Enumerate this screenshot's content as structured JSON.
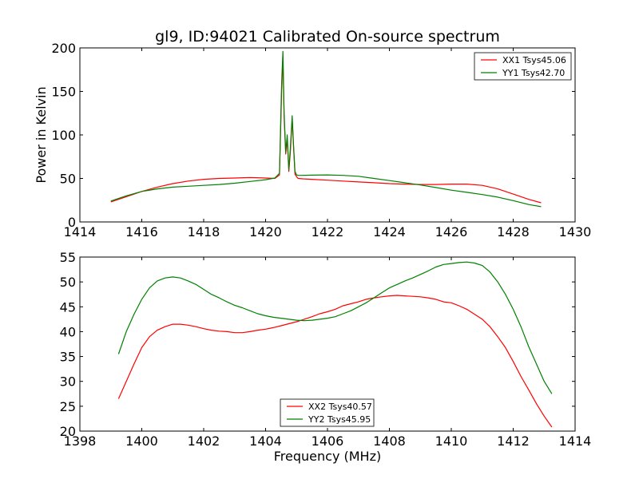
{
  "figure": {
    "title": "gl9, ID:94021 Calibrated On-source spectrum",
    "ylabel": "Power in Kelvin",
    "xlabel": "Frequency (MHz)"
  },
  "chart_data": [
    {
      "type": "line",
      "title": "gl9, ID:94021 Calibrated On-source spectrum",
      "ylabel": "Power in Kelvin",
      "xlabel": "",
      "xlim": [
        1414,
        1430
      ],
      "ylim": [
        0,
        200
      ],
      "xticks": [
        1414,
        1416,
        1418,
        1420,
        1422,
        1424,
        1426,
        1428,
        1430
      ],
      "yticks": [
        0,
        50,
        100,
        150,
        200
      ],
      "grid": false,
      "legend": "top-right",
      "series": [
        {
          "name": "XX1 Tsys45.06",
          "color": "#ff0000",
          "x": [
            1415.0,
            1415.5,
            1416.0,
            1416.5,
            1417.0,
            1417.5,
            1418.0,
            1418.5,
            1419.0,
            1419.5,
            1420.0,
            1420.3,
            1420.45,
            1420.52,
            1420.56,
            1420.6,
            1420.65,
            1420.7,
            1420.75,
            1420.8,
            1420.86,
            1420.9,
            1420.95,
            1421.0,
            1421.05,
            1421.2,
            1421.5,
            1422.0,
            1422.5,
            1423.0,
            1423.5,
            1424.0,
            1424.5,
            1425.0,
            1425.5,
            1426.0,
            1426.5,
            1427.0,
            1427.5,
            1428.0,
            1428.5,
            1428.9
          ],
          "values": [
            23,
            29,
            35,
            40,
            44,
            47,
            49,
            50,
            50.5,
            51,
            50.5,
            50,
            54,
            150,
            190,
            120,
            78,
            95,
            58,
            80,
            118,
            88,
            55,
            52,
            50,
            49.5,
            49,
            48,
            47,
            46,
            45,
            44,
            43.5,
            43,
            43,
            43.5,
            43.5,
            42,
            38,
            32,
            26,
            22
          ]
        },
        {
          "name": "YY1 Tsys42.70",
          "color": "#008000",
          "x": [
            1415.0,
            1415.5,
            1416.0,
            1416.5,
            1417.0,
            1417.5,
            1418.0,
            1418.5,
            1419.0,
            1419.5,
            1420.0,
            1420.3,
            1420.45,
            1420.52,
            1420.56,
            1420.6,
            1420.65,
            1420.7,
            1420.75,
            1420.8,
            1420.86,
            1420.9,
            1420.95,
            1421.0,
            1421.05,
            1421.2,
            1421.5,
            1422.0,
            1422.5,
            1423.0,
            1423.5,
            1424.0,
            1424.5,
            1425.0,
            1425.5,
            1426.0,
            1426.5,
            1427.0,
            1427.5,
            1428.0,
            1428.5,
            1428.9
          ],
          "values": [
            24,
            30,
            35,
            38,
            40,
            41,
            42,
            43,
            44.5,
            46.5,
            48.5,
            50.5,
            56,
            160,
            196,
            125,
            80,
            100,
            60,
            85,
            122,
            90,
            58,
            54,
            53.5,
            53.5,
            53.8,
            54,
            53.5,
            52.5,
            50,
            47.5,
            45,
            42.5,
            39.5,
            36.5,
            34,
            31.5,
            28.5,
            24.5,
            20,
            17.5
          ]
        }
      ]
    },
    {
      "type": "line",
      "title": "",
      "xlabel": "Frequency (MHz)",
      "ylabel": "",
      "xlim": [
        1398,
        1414
      ],
      "ylim": [
        20,
        55
      ],
      "xticks": [
        1398,
        1400,
        1402,
        1404,
        1406,
        1408,
        1410,
        1412,
        1414
      ],
      "yticks": [
        20,
        25,
        30,
        35,
        40,
        45,
        50,
        55
      ],
      "grid": false,
      "legend": "bottom-center",
      "series": [
        {
          "name": "XX2 Tsys40.57",
          "color": "#ff0000",
          "x": [
            1399.25,
            1399.5,
            1399.75,
            1400.0,
            1400.25,
            1400.5,
            1400.75,
            1401.0,
            1401.25,
            1401.5,
            1401.75,
            1402.0,
            1402.25,
            1402.5,
            1402.75,
            1403.0,
            1403.25,
            1403.5,
            1403.75,
            1404.0,
            1404.25,
            1404.5,
            1404.75,
            1405.0,
            1405.25,
            1405.5,
            1405.75,
            1406.0,
            1406.25,
            1406.5,
            1406.75,
            1407.0,
            1407.25,
            1407.5,
            1407.75,
            1408.0,
            1408.25,
            1408.5,
            1408.75,
            1409.0,
            1409.25,
            1409.5,
            1409.75,
            1410.0,
            1410.25,
            1410.5,
            1410.75,
            1411.0,
            1411.25,
            1411.5,
            1411.75,
            1412.0,
            1412.25,
            1412.5,
            1412.75,
            1413.0,
            1413.25
          ],
          "values": [
            26.5,
            30,
            33.5,
            36.8,
            39,
            40.3,
            41,
            41.5,
            41.5,
            41.3,
            41,
            40.6,
            40.3,
            40.1,
            40,
            39.8,
            39.8,
            40,
            40.3,
            40.5,
            40.8,
            41.2,
            41.6,
            42,
            42.5,
            43,
            43.6,
            44,
            44.5,
            45.2,
            45.6,
            46,
            46.5,
            46.8,
            47,
            47.2,
            47.3,
            47.2,
            47.1,
            47,
            46.8,
            46.5,
            46,
            45.8,
            45.2,
            44.5,
            43.5,
            42.5,
            41,
            39,
            36.8,
            34,
            31,
            28.3,
            25.5,
            23,
            20.8
          ]
        },
        {
          "name": "YY2 Tsys45.95",
          "color": "#008000",
          "x": [
            1399.25,
            1399.5,
            1399.75,
            1400.0,
            1400.25,
            1400.5,
            1400.75,
            1401.0,
            1401.25,
            1401.5,
            1401.75,
            1402.0,
            1402.25,
            1402.5,
            1402.75,
            1403.0,
            1403.25,
            1403.5,
            1403.75,
            1404.0,
            1404.25,
            1404.5,
            1404.75,
            1405.0,
            1405.25,
            1405.5,
            1405.75,
            1406.0,
            1406.25,
            1406.5,
            1406.75,
            1407.0,
            1407.25,
            1407.5,
            1407.75,
            1408.0,
            1408.25,
            1408.5,
            1408.75,
            1409.0,
            1409.25,
            1409.5,
            1409.75,
            1410.0,
            1410.25,
            1410.5,
            1410.75,
            1411.0,
            1411.25,
            1411.5,
            1411.75,
            1412.0,
            1412.25,
            1412.5,
            1412.75,
            1413.0,
            1413.25
          ],
          "values": [
            35.5,
            40,
            43.5,
            46.5,
            48.8,
            50.2,
            50.8,
            51,
            50.8,
            50.2,
            49.5,
            48.5,
            47.5,
            46.8,
            46,
            45.3,
            44.8,
            44.2,
            43.6,
            43.2,
            42.9,
            42.7,
            42.5,
            42.3,
            42.2,
            42.3,
            42.5,
            42.7,
            43,
            43.6,
            44.2,
            45,
            45.8,
            46.8,
            47.8,
            48.8,
            49.5,
            50.2,
            50.8,
            51.5,
            52.2,
            53,
            53.5,
            53.7,
            53.9,
            54,
            53.8,
            53.3,
            52,
            50,
            47.5,
            44.5,
            41,
            37,
            33.5,
            30,
            27.5
          ]
        }
      ]
    }
  ]
}
